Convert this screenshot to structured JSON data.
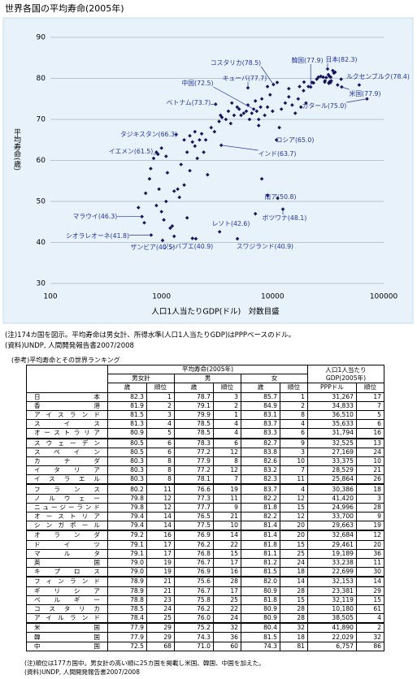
{
  "title": "世界各国の平均寿命(2005年)",
  "chart_data": {
    "type": "scatter",
    "ylabel": "平均寿命(歳)",
    "xlabel": "人口1人当たりGDP(ドル)　対数目盛",
    "xlog": true,
    "grid": true,
    "color": "#14145e",
    "annotation_color": "#2233aa",
    "xlim": [
      100,
      100000
    ],
    "xticks": [
      100,
      1000,
      10000,
      100000
    ],
    "ylim": [
      30,
      90
    ],
    "yticks": [
      30,
      40,
      50,
      60,
      70,
      80,
      90
    ],
    "x": [
      667,
      806,
      1023,
      2038,
      3335,
      4824,
      12387,
      11110,
      620,
      700,
      720,
      780,
      800,
      850,
      900,
      950,
      1000,
      1050,
      1100,
      1130,
      1200,
      1250,
      1300,
      1400,
      1450,
      1500,
      1600,
      1700,
      1800,
      1900,
      1100,
      900,
      1000,
      930,
      1356,
      2000,
      2100,
      2200,
      2300,
      2400,
      1700,
      1900,
      2600,
      2500,
      8000,
      9000,
      7000,
      1300,
      1600,
      1800,
      2000,
      3000,
      3452,
      3300,
      3500,
      3800,
      4000,
      4200,
      4500,
      4800,
      5000,
      5200,
      5500,
      5800,
      6000,
      6200,
      6500,
      6757,
      7000,
      7200,
      7500,
      7800,
      8000,
      8500,
      9000,
      9500,
      10000,
      10180,
      3071,
      6000,
      10845,
      11500,
      12000,
      13000,
      14000,
      15000,
      16000,
      17000,
      18000,
      19000,
      20000,
      21000,
      22029,
      23381,
      24996,
      25864,
      27169,
      28529,
      29461,
      29663,
      30386,
      31267,
      31794,
      32119,
      32153,
      32525,
      32684,
      33238,
      33375,
      33700,
      34833,
      35633,
      36510,
      38505,
      41420,
      41890,
      60228,
      70716,
      19189,
      22699,
      3400,
      2800,
      4300,
      9000,
      11000,
      14000,
      17500,
      7500
    ],
    "values": [
      46.3,
      41.8,
      40.5,
      40.9,
      42.6,
      40.9,
      48.1,
      50.8,
      48.5,
      44.8,
      52,
      55.5,
      58,
      60.5,
      49,
      53,
      47.5,
      45.5,
      50,
      57,
      43.5,
      44,
      52.5,
      53,
      51,
      59,
      54,
      62,
      57.5,
      64.5,
      61,
      62,
      63,
      61.5,
      66.3,
      63.5,
      60.5,
      65,
      66.5,
      62,
      46,
      41,
      56.5,
      65,
      55.5,
      51.5,
      47,
      41.5,
      65,
      66,
      67,
      67,
      63.7,
      69.5,
      70.5,
      70,
      72,
      69,
      71,
      73,
      72.5,
      71,
      71.5,
      72,
      73.5,
      70,
      71.5,
      72.5,
      74.5,
      72,
      70,
      73,
      75,
      71,
      73,
      76,
      72,
      78.5,
      73.7,
      77.7,
      65,
      68,
      72.5,
      74,
      75.5,
      73.5,
      71.5,
      75,
      73,
      77,
      74,
      78,
      77.9,
      78.9,
      79.8,
      80.3,
      80.5,
      80.3,
      79.1,
      79.4,
      80.2,
      82.3,
      80.9,
      78.8,
      78.9,
      80.5,
      79.2,
      79,
      80.3,
      79.4,
      81.9,
      81.3,
      81.5,
      78.4,
      79.8,
      77.9,
      78.4,
      75,
      79.1,
      79,
      71,
      68,
      74,
      78,
      79,
      77.5,
      78,
      68.5
    ],
    "annotations": [
      {
        "text": "コスタリカ(78.5)",
        "x": 10180,
        "y": 78.5
      },
      {
        "text": "韓国(77.9)",
        "x": 22029,
        "y": 77.9
      },
      {
        "text": "日本(82.3)",
        "x": 31267,
        "y": 82.3
      },
      {
        "text": "ルクセンブルク(78.4)",
        "x": 60228,
        "y": 78.4
      },
      {
        "text": "米国(77.9)",
        "x": 41890,
        "y": 77.9
      },
      {
        "text": "キューバ(77.7)",
        "x": 6000,
        "y": 77.7
      },
      {
        "text": "中国(72.5)",
        "x": 6757,
        "y": 72.5
      },
      {
        "text": "ベトナム(73.7)",
        "x": 3071,
        "y": 73.7
      },
      {
        "text": "カタール(75.0)",
        "x": 70716,
        "y": 75
      },
      {
        "text": "タジキスタン(66.3)",
        "x": 1356,
        "y": 66.3
      },
      {
        "text": "ロシア(65.0)",
        "x": 10845,
        "y": 65
      },
      {
        "text": "イエメン(61.5)",
        "x": 930,
        "y": 61.5
      },
      {
        "text": "インド(63.7)",
        "x": 3452,
        "y": 63.7
      },
      {
        "text": "南ア(50.8)",
        "x": 11110,
        "y": 50.8
      },
      {
        "text": "マラウイ(46.3)",
        "x": 667,
        "y": 46.3
      },
      {
        "text": "ボツワナ(48.1)",
        "x": 12387,
        "y": 48.1
      },
      {
        "text": "レソト(42.6)",
        "x": 3335,
        "y": 42.6
      },
      {
        "text": "シオラレオーネ(41.8)",
        "x": 806,
        "y": 41.8
      },
      {
        "text": "ジンバブエ(40.9)",
        "x": 2038,
        "y": 40.9
      },
      {
        "text": "スワジランド(40.9)",
        "x": 4824,
        "y": 40.9
      },
      {
        "text": "ザンビア(40.5)",
        "x": 1023,
        "y": 40.5
      }
    ]
  },
  "notes": [
    "(注)174カ国を図示。平均寿命は男女計、所得水準(人口1人当たりGDP)はPPPベースのドル。",
    "(資料)UNDP, 人間開発報告書2007/2008"
  ],
  "table": {
    "caption": "(参考)平均寿命とその世界ランキング",
    "group_life": "平均寿命(2005年)",
    "group_gdp": "人口1人当たりGDP(2005年)",
    "sub": [
      "男女計",
      "男",
      "女"
    ],
    "columns": [
      "歳",
      "順位",
      "歳",
      "順位",
      "歳",
      "順位",
      "PPPドル",
      "順位"
    ],
    "rows": [
      [
        "日本",
        "82.3",
        "1",
        "78.7",
        "3",
        "85.7",
        "1",
        "31,267",
        "17"
      ],
      [
        "香港",
        "81.9",
        "2",
        "79.1",
        "2",
        "84.9",
        "2",
        "34,833",
        "7"
      ],
      [
        "アイスランド",
        "81.5",
        "3",
        "79.9",
        "1",
        "83.1",
        "8",
        "36,510",
        "5"
      ],
      [
        "スイス",
        "81.3",
        "4",
        "78.5",
        "4",
        "83.7",
        "4",
        "35,633",
        "6"
      ],
      [
        "オーストラリア",
        "80.9",
        "5",
        "78.5",
        "4",
        "83.3",
        "6",
        "31,794",
        "16"
      ],
      [
        "スウェーデン",
        "80.5",
        "6",
        "78.3",
        "6",
        "82.7",
        "9",
        "32,525",
        "13"
      ],
      [
        "スペイン",
        "80.5",
        "6",
        "77.2",
        "12",
        "83.8",
        "3",
        "27,169",
        "24"
      ],
      [
        "カナダ",
        "80.3",
        "8",
        "77.9",
        "8",
        "82.6",
        "10",
        "33,375",
        "10"
      ],
      [
        "イタリア",
        "80.3",
        "8",
        "77.2",
        "12",
        "83.2",
        "7",
        "28,529",
        "21"
      ],
      [
        "イスラエル",
        "80.3",
        "8",
        "78.1",
        "7",
        "82.3",
        "11",
        "25,864",
        "26"
      ],
      [
        "フランス",
        "80.2",
        "11",
        "76.6",
        "19",
        "83.7",
        "4",
        "30,386",
        "18"
      ],
      [
        "ノルウェー",
        "79.8",
        "12",
        "77.3",
        "11",
        "82.2",
        "12",
        "41,420",
        "3"
      ],
      [
        "ニュージーランド",
        "79.8",
        "12",
        "77.7",
        "9",
        "81.8",
        "15",
        "24,996",
        "28"
      ],
      [
        "オーストリア",
        "79.4",
        "14",
        "76.5",
        "21",
        "82.2",
        "12",
        "33,700",
        "9"
      ],
      [
        "シンガポール",
        "79.4",
        "14",
        "77.5",
        "10",
        "81.4",
        "20",
        "29,663",
        "19"
      ],
      [
        "オランダ",
        "79.2",
        "16",
        "76.9",
        "14",
        "81.4",
        "20",
        "32,684",
        "12"
      ],
      [
        "ドイツ",
        "79.1",
        "17",
        "76.2",
        "22",
        "81.8",
        "15",
        "29,461",
        "20"
      ],
      [
        "マルタ",
        "79.1",
        "17",
        "76.8",
        "15",
        "81.1",
        "25",
        "19,189",
        "36"
      ],
      [
        "英国",
        "79.0",
        "19",
        "76.7",
        "17",
        "81.2",
        "24",
        "33,238",
        "11"
      ],
      [
        "キプロス",
        "79.0",
        "19",
        "76.9",
        "16",
        "81.5",
        "18",
        "22,699",
        "30"
      ],
      [
        "フィンランド",
        "78.9",
        "21",
        "75.6",
        "28",
        "82.0",
        "14",
        "32,153",
        "14"
      ],
      [
        "ギリシア",
        "78.9",
        "21",
        "76.7",
        "17",
        "80.9",
        "28",
        "23,381",
        "29"
      ],
      [
        "ベルギー",
        "78.8",
        "23",
        "75.8",
        "25",
        "81.8",
        "15",
        "32,119",
        "15"
      ],
      [
        "コスタリカ",
        "78.5",
        "24",
        "76.2",
        "22",
        "80.9",
        "28",
        "10,180",
        "61"
      ],
      [
        "アイルランド",
        "78.4",
        "25",
        "76.0",
        "24",
        "80.9",
        "28",
        "38,505",
        "4"
      ],
      [
        "米国",
        "77.9",
        "29",
        "75.2",
        "32",
        "80.4",
        "32",
        "41,890",
        "2"
      ],
      [
        "韓国",
        "77.9",
        "29",
        "74.3",
        "36",
        "81.5",
        "18",
        "22,029",
        "32"
      ],
      [
        "中国",
        "72.5",
        "68",
        "71.0",
        "60",
        "74.3",
        "81",
        "6,757",
        "86"
      ]
    ],
    "notes": [
      "(注)順位は177カ国中。男女計の高い順に25カ国を掲載し米国、韓国、中国を加えた。",
      "(資料)UNDP, 人間開発報告書2007/2008"
    ]
  }
}
